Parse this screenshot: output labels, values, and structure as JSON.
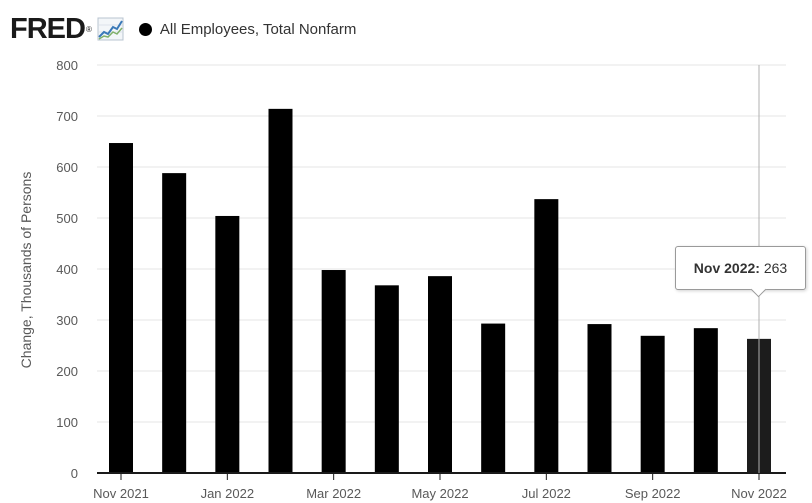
{
  "header": {
    "logo_text": "FRED",
    "logo_mark": "®",
    "series_label": "All Employees, Total Nonfarm",
    "series_color": "#000000"
  },
  "chart_data": {
    "type": "bar",
    "categories": [
      "Nov 2021",
      "Dec 2021",
      "Jan 2022",
      "Feb 2022",
      "Mar 2022",
      "Apr 2022",
      "May 2022",
      "Jun 2022",
      "Jul 2022",
      "Aug 2022",
      "Sep 2022",
      "Oct 2022",
      "Nov 2022"
    ],
    "values": [
      647,
      588,
      504,
      714,
      398,
      368,
      386,
      293,
      537,
      292,
      269,
      284,
      263
    ],
    "x_tick_labels": [
      "Nov 2021",
      "Jan 2022",
      "Mar 2022",
      "May 2022",
      "Jul 2022",
      "Sep 2022",
      "Nov 2022"
    ],
    "y_ticks": [
      0,
      100,
      200,
      300,
      400,
      500,
      600,
      700,
      800
    ],
    "ylabel": "Change, Thousands of Persons",
    "xlabel": "",
    "ylim": [
      0,
      800
    ],
    "grid": true,
    "bar_color": "#000000",
    "highlight_color": "#1c1c1c",
    "highlight_index": 12
  },
  "tooltip": {
    "date": "Nov 2022:",
    "value": "263"
  }
}
